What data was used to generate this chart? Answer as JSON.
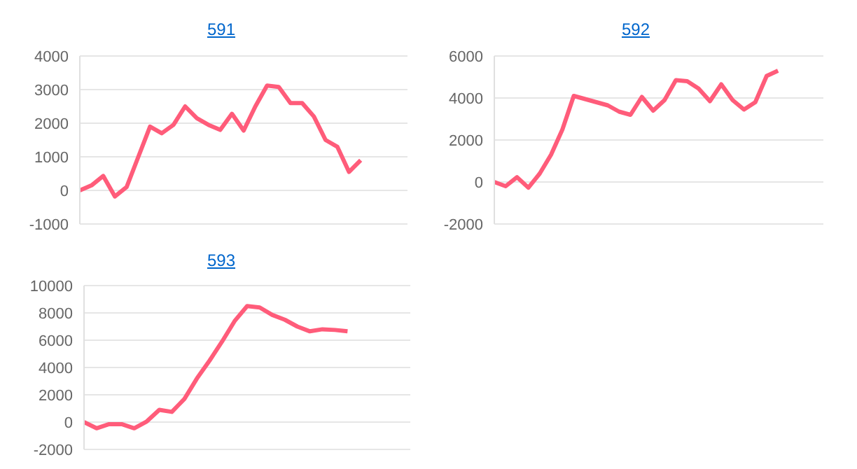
{
  "chart_data": [
    {
      "type": "line",
      "title": "591",
      "categories": [
        null,
        null,
        null,
        null,
        null,
        null,
        null,
        null,
        null,
        null,
        null,
        null,
        null,
        null,
        null,
        null,
        null,
        null,
        null,
        null,
        null,
        null,
        null,
        null,
        null,
        null,
        null,
        null,
        null
      ],
      "series": [
        {
          "color": "#ff5c7a",
          "values": [
            0,
            150,
            430,
            -180,
            100,
            1000,
            1900,
            1700,
            1950,
            2500,
            2150,
            1950,
            1800,
            2280,
            1780,
            2500,
            3120,
            3080,
            2600,
            2600,
            2200,
            1500,
            1300,
            550,
            900,
            null,
            null,
            null,
            null
          ]
        }
      ],
      "ylim": [
        -1000,
        4000
      ],
      "yticks": [
        -1000,
        0,
        1000,
        2000,
        3000,
        4000
      ],
      "grid": "y",
      "tick_labels": "y",
      "marker": "none"
    },
    {
      "type": "line",
      "title": "592",
      "categories": [
        null,
        null,
        null,
        null,
        null,
        null,
        null,
        null,
        null,
        null,
        null,
        null,
        null,
        null,
        null,
        null,
        null,
        null,
        null,
        null,
        null,
        null,
        null,
        null,
        null,
        null,
        null,
        null,
        null,
        null
      ],
      "series": [
        {
          "color": "#ff5c7a",
          "values": [
            0,
            -200,
            230,
            -270,
            400,
            1300,
            2500,
            4100,
            3950,
            3800,
            3650,
            3350,
            3200,
            4050,
            3400,
            3900,
            4850,
            4800,
            4450,
            3850,
            4650,
            3900,
            3450,
            3800,
            5050,
            5300,
            null,
            null,
            null,
            null
          ]
        }
      ],
      "ylim": [
        -2000,
        6000
      ],
      "yticks": [
        -2000,
        0,
        2000,
        4000,
        6000
      ],
      "grid": "y",
      "tick_labels": "y",
      "marker": "none"
    },
    {
      "type": "line",
      "title": "593",
      "categories": [
        null,
        null,
        null,
        null,
        null,
        null,
        null,
        null,
        null,
        null,
        null,
        null,
        null,
        null,
        null,
        null,
        null,
        null,
        null,
        null,
        null,
        null,
        null,
        null,
        null,
        null,
        null
      ],
      "series": [
        {
          "color": "#ff5c7a",
          "values": [
            0,
            -450,
            -150,
            -150,
            -450,
            50,
            900,
            750,
            1700,
            3200,
            4500,
            5900,
            7400,
            8500,
            8400,
            7850,
            7500,
            7000,
            6650,
            6800,
            6750,
            6650,
            null,
            null,
            null,
            null,
            null
          ]
        }
      ],
      "ylim": [
        -2000,
        10000
      ],
      "yticks": [
        -2000,
        0,
        2000,
        4000,
        6000,
        8000,
        10000
      ],
      "grid": "y",
      "tick_labels": "y",
      "marker": "none"
    }
  ]
}
